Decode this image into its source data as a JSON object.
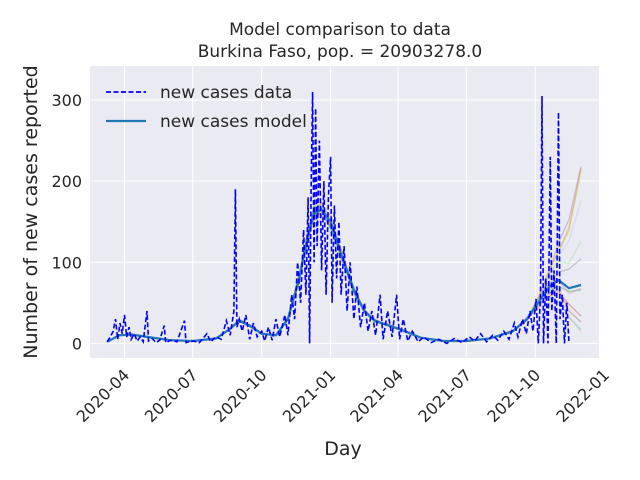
{
  "chart_data": {
    "type": "line",
    "title": "Model comparison to data",
    "subtitle": "Burkina Faso, pop. = 20903278.0",
    "xlabel": "Day",
    "ylabel": "Number of new cases reported",
    "x_range": [
      "2020-02-15",
      "2021-12-25"
    ],
    "ylim": [
      -18,
      342
    ],
    "x_ticks": [
      "2020-04",
      "2020-07",
      "2020-10",
      "2021-01",
      "2021-04",
      "2021-07",
      "2021-10",
      "2022-01"
    ],
    "y_ticks": [
      0,
      100,
      200,
      300
    ],
    "grid": true,
    "legend_position": "top-left",
    "colors": {
      "background": "#eaeaf2",
      "grid": "#ffffff",
      "data": "#0000ff",
      "model": "#1f77b4"
    },
    "series": [
      {
        "name": "new cases data",
        "style": "dashed",
        "color": "#0000ff",
        "points": [
          [
            "2020-03-09",
            2
          ],
          [
            "2020-03-13",
            8
          ],
          [
            "2020-03-17",
            15
          ],
          [
            "2020-03-20",
            30
          ],
          [
            "2020-03-23",
            5
          ],
          [
            "2020-03-26",
            25
          ],
          [
            "2020-03-29",
            12
          ],
          [
            "2020-04-01",
            35
          ],
          [
            "2020-04-04",
            8
          ],
          [
            "2020-04-07",
            20
          ],
          [
            "2020-04-10",
            5
          ],
          [
            "2020-04-14",
            12
          ],
          [
            "2020-04-18",
            3
          ],
          [
            "2020-04-22",
            8
          ],
          [
            "2020-04-26",
            2
          ],
          [
            "2020-05-01",
            40
          ],
          [
            "2020-05-03",
            3
          ],
          [
            "2020-05-08",
            6
          ],
          [
            "2020-05-13",
            1
          ],
          [
            "2020-05-18",
            4
          ],
          [
            "2020-05-24",
            22
          ],
          [
            "2020-05-26",
            1
          ],
          [
            "2020-06-02",
            4
          ],
          [
            "2020-06-10",
            2
          ],
          [
            "2020-06-20",
            28
          ],
          [
            "2020-06-22",
            1
          ],
          [
            "2020-07-01",
            3
          ],
          [
            "2020-07-10",
            1
          ],
          [
            "2020-07-20",
            12
          ],
          [
            "2020-07-25",
            2
          ],
          [
            "2020-08-01",
            8
          ],
          [
            "2020-08-08",
            5
          ],
          [
            "2020-08-15",
            28
          ],
          [
            "2020-08-20",
            10
          ],
          [
            "2020-08-25",
            40
          ],
          [
            "2020-08-27",
            190
          ],
          [
            "2020-08-29",
            20
          ],
          [
            "2020-09-01",
            30
          ],
          [
            "2020-09-05",
            15
          ],
          [
            "2020-09-10",
            35
          ],
          [
            "2020-09-15",
            5
          ],
          [
            "2020-09-20",
            25
          ],
          [
            "2020-09-25",
            8
          ],
          [
            "2020-10-01",
            15
          ],
          [
            "2020-10-05",
            3
          ],
          [
            "2020-10-10",
            20
          ],
          [
            "2020-10-15",
            4
          ],
          [
            "2020-10-20",
            30
          ],
          [
            "2020-10-25",
            8
          ],
          [
            "2020-11-01",
            35
          ],
          [
            "2020-11-05",
            10
          ],
          [
            "2020-11-10",
            60
          ],
          [
            "2020-11-14",
            30
          ],
          [
            "2020-11-18",
            100
          ],
          [
            "2020-11-22",
            50
          ],
          [
            "2020-11-26",
            140
          ],
          [
            "2020-11-29",
            60
          ],
          [
            "2020-12-02",
            180
          ],
          [
            "2020-12-04",
            0
          ],
          [
            "2020-12-06",
            190
          ],
          [
            "2020-12-08",
            310
          ],
          [
            "2020-12-10",
            100
          ],
          [
            "2020-12-12",
            290
          ],
          [
            "2020-12-14",
            120
          ],
          [
            "2020-12-17",
            250
          ],
          [
            "2020-12-20",
            90
          ],
          [
            "2020-12-23",
            200
          ],
          [
            "2020-12-26",
            60
          ],
          [
            "2020-12-29",
            180
          ],
          [
            "2021-01-01",
            230
          ],
          [
            "2021-01-03",
            50
          ],
          [
            "2021-01-06",
            170
          ],
          [
            "2021-01-09",
            80
          ],
          [
            "2021-01-12",
            150
          ],
          [
            "2021-01-15",
            60
          ],
          [
            "2021-01-19",
            120
          ],
          [
            "2021-01-23",
            40
          ],
          [
            "2021-01-27",
            100
          ],
          [
            "2021-02-01",
            30
          ],
          [
            "2021-02-05",
            70
          ],
          [
            "2021-02-10",
            20
          ],
          [
            "2021-02-15",
            50
          ],
          [
            "2021-02-20",
            15
          ],
          [
            "2021-02-25",
            40
          ],
          [
            "2021-03-02",
            10
          ],
          [
            "2021-03-08",
            60
          ],
          [
            "2021-03-12",
            5
          ],
          [
            "2021-03-18",
            40
          ],
          [
            "2021-03-24",
            8
          ],
          [
            "2021-03-30",
            60
          ],
          [
            "2021-04-03",
            5
          ],
          [
            "2021-04-08",
            30
          ],
          [
            "2021-04-14",
            3
          ],
          [
            "2021-04-20",
            15
          ],
          [
            "2021-04-28",
            2
          ],
          [
            "2021-05-05",
            8
          ],
          [
            "2021-05-15",
            1
          ],
          [
            "2021-05-25",
            5
          ],
          [
            "2021-06-05",
            0
          ],
          [
            "2021-06-15",
            6
          ],
          [
            "2021-06-25",
            1
          ],
          [
            "2021-07-05",
            8
          ],
          [
            "2021-07-12",
            3
          ],
          [
            "2021-07-20",
            12
          ],
          [
            "2021-07-28",
            2
          ],
          [
            "2021-08-05",
            10
          ],
          [
            "2021-08-12",
            4
          ],
          [
            "2021-08-20",
            15
          ],
          [
            "2021-08-27",
            5
          ],
          [
            "2021-09-03",
            25
          ],
          [
            "2021-09-08",
            8
          ],
          [
            "2021-09-14",
            30
          ],
          [
            "2021-09-19",
            12
          ],
          [
            "2021-09-24",
            40
          ],
          [
            "2021-09-28",
            15
          ],
          [
            "2021-10-02",
            55
          ],
          [
            "2021-10-05",
            0
          ],
          [
            "2021-10-08",
            60
          ],
          [
            "2021-10-10",
            305
          ],
          [
            "2021-10-12",
            0
          ],
          [
            "2021-10-15",
            80
          ],
          [
            "2021-10-18",
            0
          ],
          [
            "2021-10-21",
            230
          ],
          [
            "2021-10-23",
            40
          ],
          [
            "2021-10-26",
            90
          ],
          [
            "2021-10-29",
            0
          ],
          [
            "2021-11-01",
            285
          ],
          [
            "2021-11-03",
            30
          ],
          [
            "2021-11-06",
            60
          ],
          [
            "2021-11-09",
            0
          ],
          [
            "2021-11-12",
            50
          ],
          [
            "2021-11-15",
            0
          ]
        ]
      },
      {
        "name": "new cases model",
        "style": "solid",
        "color": "#1f77b4",
        "points": [
          [
            "2020-03-09",
            2
          ],
          [
            "2020-03-25",
            10
          ],
          [
            "2020-04-10",
            11
          ],
          [
            "2020-05-01",
            8
          ],
          [
            "2020-06-01",
            4
          ],
          [
            "2020-07-01",
            3
          ],
          [
            "2020-08-01",
            6
          ],
          [
            "2020-08-20",
            18
          ],
          [
            "2020-09-01",
            28
          ],
          [
            "2020-09-15",
            22
          ],
          [
            "2020-10-01",
            12
          ],
          [
            "2020-10-20",
            10
          ],
          [
            "2020-11-05",
            30
          ],
          [
            "2020-11-20",
            80
          ],
          [
            "2020-12-01",
            130
          ],
          [
            "2020-12-10",
            160
          ],
          [
            "2020-12-20",
            165
          ],
          [
            "2021-01-01",
            150
          ],
          [
            "2021-01-15",
            110
          ],
          [
            "2021-02-01",
            65
          ],
          [
            "2021-02-15",
            40
          ],
          [
            "2021-03-01",
            28
          ],
          [
            "2021-03-20",
            22
          ],
          [
            "2021-04-10",
            15
          ],
          [
            "2021-05-01",
            7
          ],
          [
            "2021-06-01",
            3
          ],
          [
            "2021-07-01",
            3
          ],
          [
            "2021-08-01",
            6
          ],
          [
            "2021-09-01",
            15
          ],
          [
            "2021-09-20",
            30
          ],
          [
            "2021-10-05",
            50
          ],
          [
            "2021-10-20",
            70
          ],
          [
            "2021-11-01",
            78
          ],
          [
            "2021-11-15",
            68
          ],
          [
            "2021-12-01",
            72
          ]
        ]
      }
    ],
    "ensemble_colors": [
      "#ff7f0e",
      "#2ca02c",
      "#d62728",
      "#9467bd",
      "#8c564b",
      "#e377c2",
      "#bcbd22",
      "#17becf",
      "#7f7f7f",
      "#aec7e8",
      "#ffbb78",
      "#98df8a"
    ]
  }
}
